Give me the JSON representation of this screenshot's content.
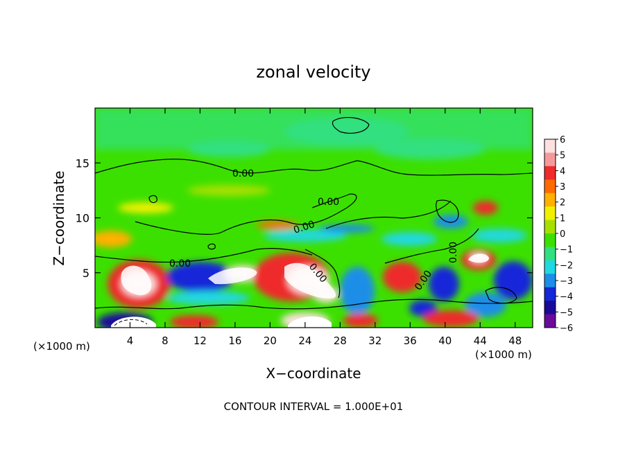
{
  "chart_data": {
    "type": "heatmap",
    "title": "zonal velocity",
    "xlabel": "X−coordinate",
    "ylabel": "Z−coordinate",
    "x_unit_label": "(×1000 m)",
    "x_unit_label_right": "(×1000 m)",
    "footer": "CONTOUR INTERVAL = 1.000E+01",
    "x_range": [
      0,
      50
    ],
    "y_range": [
      0,
      20
    ],
    "x_ticks": [
      4,
      8,
      12,
      16,
      20,
      24,
      28,
      32,
      36,
      40,
      44,
      48
    ],
    "y_ticks": [
      5,
      10,
      15
    ],
    "colorbar": {
      "range": [
        -6,
        6
      ],
      "labels": [
        6,
        5,
        4,
        3,
        2,
        1,
        0,
        -1,
        -2,
        -3,
        -4,
        -5,
        -6
      ],
      "colors": [
        "#fde0e0",
        "#f59a9a",
        "#ee2a2a",
        "#ff6a00",
        "#ffb000",
        "#f0f000",
        "#a6e000",
        "#3ce000",
        "#30e080",
        "#20d8e0",
        "#1a8ee8",
        "#1428d8",
        "#1a0a9a",
        "#6a0a9a"
      ]
    },
    "contour_labels": [
      "0.00",
      "0.00",
      "0.00",
      "0.00",
      "0.00",
      "0.00",
      "0.00"
    ]
  }
}
